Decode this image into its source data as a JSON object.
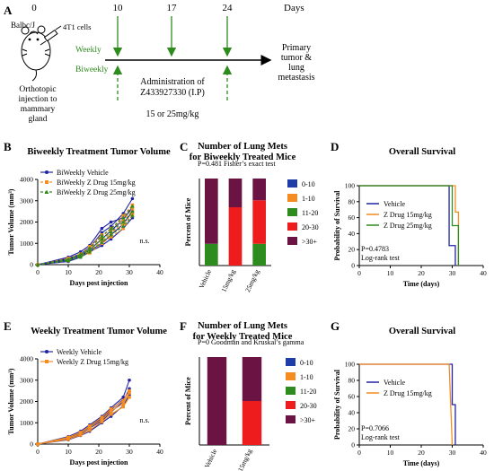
{
  "panel_a": {
    "letter": "A",
    "mouse_label": "Balbc/J",
    "cells_label": "4T1 cells",
    "day_labels": [
      "0",
      "10",
      "17",
      "24"
    ],
    "days_word": "Days",
    "weekly_label": "Weekly",
    "biweekly_label": "Biweekly",
    "outcome_lines": [
      "Primary",
      "tumor &",
      "lung",
      "metastasis"
    ],
    "injection_lines": [
      "Orthotopic",
      "injection to",
      "mammary",
      "gland"
    ],
    "admin_lines": [
      "Administration of",
      "Z433927330 (I.P)"
    ],
    "dose_label": "15 or 25mg/kg",
    "colors": {
      "weekly": "#2e8b1e",
      "biweekly": "#2e8b1e",
      "timeline": "#000000"
    }
  },
  "chart_data": [
    {
      "id": "B",
      "type": "line",
      "title": "Biweekly Treatment Tumor Volume",
      "xlabel": "Days post injection",
      "ylabel": "Tumor Volume (mm³)",
      "xlim": [
        0,
        40
      ],
      "ylim": [
        0,
        4000
      ],
      "xticks": [
        "0",
        "10",
        "20",
        "30",
        "40"
      ],
      "yticks": [
        "0",
        "1000",
        "2000",
        "3000",
        "4000"
      ],
      "annotation": "n.s.",
      "legend": "top-left",
      "series": [
        {
          "name": "BiWeekly Vehicle",
          "color": "#1f24a6",
          "marker": "circle",
          "dash": "solid",
          "lines": [
            [
              [
                0,
                0
              ],
              [
                10,
                300
              ],
              [
                14,
                500
              ],
              [
                17,
                800
              ],
              [
                21,
                1500
              ],
              [
                24,
                1800
              ],
              [
                28,
                2400
              ],
              [
                31,
                3100
              ]
            ],
            [
              [
                0,
                0
              ],
              [
                10,
                250
              ],
              [
                14,
                450
              ],
              [
                17,
                700
              ],
              [
                21,
                1200
              ],
              [
                24,
                1600
              ],
              [
                28,
                2100
              ],
              [
                31,
                2700
              ]
            ],
            [
              [
                0,
                0
              ],
              [
                10,
                200
              ],
              [
                14,
                400
              ],
              [
                17,
                650
              ],
              [
                21,
                1000
              ],
              [
                24,
                1400
              ],
              [
                28,
                1900
              ],
              [
                31,
                2500
              ]
            ],
            [
              [
                0,
                0
              ],
              [
                10,
                350
              ],
              [
                14,
                600
              ],
              [
                17,
                900
              ],
              [
                21,
                1700
              ],
              [
                24,
                2000
              ],
              [
                28,
                2200
              ]
            ],
            [
              [
                0,
                0
              ],
              [
                10,
                150
              ],
              [
                14,
                350
              ],
              [
                17,
                600
              ],
              [
                21,
                900
              ],
              [
                24,
                1200
              ],
              [
                28,
                1700
              ],
              [
                31,
                2200
              ]
            ]
          ]
        },
        {
          "name": "BiWeekly Z Drug 15mg/kg",
          "color": "#f58c1f",
          "marker": "square",
          "dash": "dash",
          "lines": [
            [
              [
                0,
                0
              ],
              [
                10,
                250
              ],
              [
                14,
                450
              ],
              [
                17,
                750
              ],
              [
                21,
                1300
              ],
              [
                24,
                1700
              ],
              [
                28,
                2100
              ],
              [
                31,
                2600
              ]
            ],
            [
              [
                0,
                0
              ],
              [
                10,
                200
              ],
              [
                14,
                400
              ],
              [
                17,
                650
              ],
              [
                21,
                1100
              ],
              [
                24,
                1500
              ],
              [
                28,
                1900
              ],
              [
                31,
                2400
              ]
            ],
            [
              [
                0,
                0
              ],
              [
                10,
                300
              ],
              [
                14,
                500
              ],
              [
                17,
                850
              ],
              [
                21,
                1400
              ],
              [
                24,
                1650
              ],
              [
                28,
                2300
              ],
              [
                31,
                2800
              ]
            ],
            [
              [
                0,
                0
              ],
              [
                10,
                180
              ],
              [
                14,
                380
              ],
              [
                17,
                550
              ],
              [
                21,
                1000
              ],
              [
                24,
                1300
              ],
              [
                28,
                1700
              ],
              [
                31,
                2300
              ]
            ]
          ]
        },
        {
          "name": "BiWeekly Z Drug 25mg/kg",
          "color": "#2e8b1e",
          "marker": "triangle",
          "dash": "dash",
          "lines": [
            [
              [
                0,
                0
              ],
              [
                10,
                220
              ],
              [
                14,
                420
              ],
              [
                17,
                700
              ],
              [
                21,
                1200
              ],
              [
                24,
                1550
              ],
              [
                28,
                2000
              ],
              [
                31,
                2500
              ]
            ],
            [
              [
                0,
                0
              ],
              [
                10,
                260
              ],
              [
                14,
                480
              ],
              [
                17,
                780
              ],
              [
                21,
                1350
              ],
              [
                24,
                1700
              ],
              [
                28,
                2200
              ],
              [
                31,
                2750
              ]
            ],
            [
              [
                0,
                0
              ],
              [
                10,
                190
              ],
              [
                14,
                360
              ],
              [
                17,
                600
              ],
              [
                21,
                1050
              ],
              [
                24,
                1400
              ],
              [
                28,
                1800
              ],
              [
                31,
                2300
              ]
            ]
          ]
        }
      ]
    },
    {
      "id": "C",
      "type": "bar",
      "stacked": true,
      "title_lines": [
        "Number of Lung Mets",
        "for Biweekly Treated Mice"
      ],
      "subtitle": "P=0.481 Fisher’s exact test",
      "ylabel": "Percent of Mice",
      "ylim": [
        0,
        100
      ],
      "categories": [
        "Vehicle",
        "15mg/kg",
        "25mg/kg"
      ],
      "legend": "right",
      "series": [
        {
          "name": "0-10",
          "color": "#1f3da6",
          "values": [
            0,
            0,
            0
          ]
        },
        {
          "name": "1-10",
          "color": "#f58c1f",
          "values": [
            0,
            0,
            0
          ]
        },
        {
          "name": "11-20",
          "color": "#2e8b1e",
          "values": [
            25,
            0,
            25
          ]
        },
        {
          "name": "20-30",
          "color": "#ee1c1c",
          "values": [
            0,
            67,
            50
          ]
        },
        {
          "name": ">30+",
          "color": "#6b1444",
          "values": [
            75,
            33,
            25
          ]
        }
      ]
    },
    {
      "id": "D",
      "type": "line",
      "step": true,
      "title": "Overall Survival",
      "xlabel": "Time (days)",
      "ylabel": "Probability of Survival",
      "xlim": [
        0,
        40
      ],
      "ylim": [
        0,
        100
      ],
      "xticks": [
        "0",
        "10",
        "20",
        "30",
        "40"
      ],
      "yticks": [
        "0",
        "20",
        "40",
        "60",
        "80",
        "100"
      ],
      "annotation_lines": [
        "P=0.4783",
        "Log-rank test"
      ],
      "legend": "center-right",
      "series": [
        {
          "name": "Vehicle",
          "color": "#1f24a6",
          "x": [
            0,
            29,
            29,
            31,
            31
          ],
          "y": [
            100,
            100,
            25,
            25,
            0
          ]
        },
        {
          "name": "Z Drug 15mg/kg",
          "color": "#f58c1f",
          "x": [
            0,
            31,
            31,
            32,
            32
          ],
          "y": [
            100,
            100,
            67,
            67,
            0
          ]
        },
        {
          "name": "Z Drug 25mg/kg",
          "color": "#2e8b1e",
          "x": [
            0,
            30,
            30,
            32,
            32
          ],
          "y": [
            100,
            100,
            50,
            50,
            0
          ]
        }
      ]
    },
    {
      "id": "E",
      "type": "line",
      "title": "Weekly Treatment Tumor Volume",
      "xlabel": "Days post injection",
      "ylabel": "Tumor Volume (mm³)",
      "xlim": [
        0,
        40
      ],
      "ylim": [
        0,
        4000
      ],
      "xticks": [
        "0",
        "10",
        "20",
        "30",
        "40"
      ],
      "yticks": [
        "0",
        "1000",
        "2000",
        "3000",
        "4000"
      ],
      "annotation": "n.s.",
      "legend": "top-left",
      "series": [
        {
          "name": "Weekly Vehicle",
          "color": "#1f24a6",
          "marker": "circle",
          "dash": "solid",
          "lines": [
            [
              [
                0,
                0
              ],
              [
                10,
                350
              ],
              [
                14,
                600
              ],
              [
                17,
                900
              ],
              [
                21,
                1300
              ],
              [
                24,
                1700
              ],
              [
                28,
                2200
              ],
              [
                30,
                3000
              ]
            ],
            [
              [
                0,
                0
              ],
              [
                10,
                250
              ],
              [
                14,
                450
              ],
              [
                17,
                750
              ],
              [
                21,
                1100
              ],
              [
                24,
                1500
              ],
              [
                28,
                2000
              ],
              [
                30,
                2600
              ]
            ],
            [
              [
                0,
                0
              ],
              [
                10,
                200
              ],
              [
                14,
                400
              ],
              [
                17,
                600
              ],
              [
                21,
                1000
              ],
              [
                24,
                1300
              ],
              [
                28,
                1800
              ],
              [
                30,
                2300
              ]
            ],
            [
              [
                0,
                0
              ],
              [
                10,
                300
              ],
              [
                14,
                500
              ],
              [
                17,
                800
              ],
              [
                21,
                1200
              ],
              [
                24,
                1600
              ],
              [
                28,
                2100
              ]
            ]
          ]
        },
        {
          "name": "Weekly Z Drug 15mg/kg",
          "color": "#f58c1f",
          "marker": "square",
          "dash": "solid",
          "lines": [
            [
              [
                0,
                0
              ],
              [
                10,
                280
              ],
              [
                14,
                480
              ],
              [
                17,
                780
              ],
              [
                21,
                1150
              ],
              [
                24,
                1550
              ],
              [
                28,
                1900
              ],
              [
                30,
                2400
              ]
            ],
            [
              [
                0,
                0
              ],
              [
                10,
                220
              ],
              [
                14,
                420
              ],
              [
                17,
                650
              ],
              [
                21,
                1050
              ],
              [
                24,
                1400
              ],
              [
                28,
                1750
              ],
              [
                30,
                2200
              ]
            ],
            [
              [
                0,
                0
              ],
              [
                10,
                320
              ],
              [
                14,
                550
              ],
              [
                17,
                850
              ],
              [
                21,
                1250
              ],
              [
                24,
                1650
              ],
              [
                28,
                2050
              ],
              [
                30,
                2500
              ]
            ]
          ]
        }
      ]
    },
    {
      "id": "F",
      "type": "bar",
      "stacked": true,
      "title_lines": [
        "Number of Lung Mets",
        "for Weekly Treated Mice"
      ],
      "subtitle": "P=0 Goodman and Kruskal’s gamma",
      "ylabel": "Percent of Mice",
      "ylim": [
        0,
        100
      ],
      "categories": [
        "Vehicle",
        "15mg/kg"
      ],
      "legend": "right",
      "series": [
        {
          "name": "0-10",
          "color": "#1f3da6",
          "values": [
            0,
            0
          ]
        },
        {
          "name": "1-10",
          "color": "#f58c1f",
          "values": [
            0,
            0
          ]
        },
        {
          "name": "11-20",
          "color": "#2e8b1e",
          "values": [
            0,
            0
          ]
        },
        {
          "name": "20-30",
          "color": "#ee1c1c",
          "values": [
            0,
            50
          ]
        },
        {
          "name": ">30+",
          "color": "#6b1444",
          "values": [
            100,
            50
          ]
        }
      ]
    },
    {
      "id": "G",
      "type": "line",
      "step": true,
      "title": "Overall Survival",
      "xlabel": "Time (days)",
      "ylabel": "Probability of Survival",
      "xlim": [
        0,
        40
      ],
      "ylim": [
        0,
        100
      ],
      "xticks": [
        "0",
        "10",
        "20",
        "30",
        "40"
      ],
      "yticks": [
        "0",
        "20",
        "40",
        "60",
        "80",
        "100"
      ],
      "annotation_lines": [
        "P=0.7066",
        "Log-rank test"
      ],
      "legend": "center-right",
      "series": [
        {
          "name": "Vehicle",
          "color": "#1f24a6",
          "x": [
            0,
            30,
            30,
            31,
            31
          ],
          "y": [
            100,
            100,
            50,
            50,
            0
          ]
        },
        {
          "name": "Z Drug 15mg/kg",
          "color": "#f58c1f",
          "x": [
            0,
            29,
            29,
            30,
            30
          ],
          "y": [
            100,
            100,
            100,
            0,
            0
          ]
        }
      ]
    }
  ]
}
